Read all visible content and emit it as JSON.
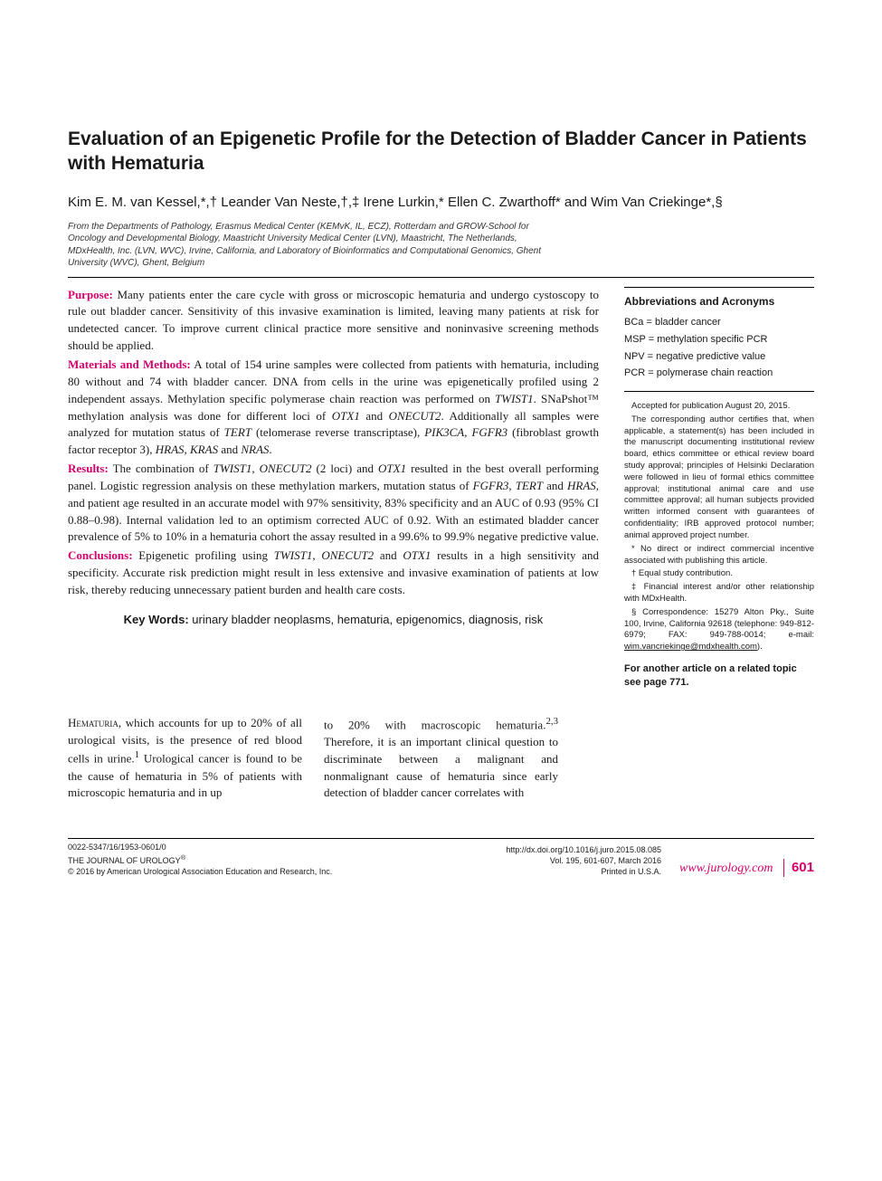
{
  "title": "Evaluation of an Epigenetic Profile for the Detection of Bladder Cancer in Patients with Hematuria",
  "authors": "Kim E. M. van Kessel,*,† Leander Van Neste,†,‡ Irene Lurkin,* Ellen C. Zwarthoff* and Wim Van Criekinge*,§",
  "affiliations": "From the Departments of Pathology, Erasmus Medical Center (KEMvK, IL, ECZ), Rotterdam and GROW-School for Oncology and Developmental Biology, Maastricht University Medical Center (LVN), Maastricht, The Netherlands, MDxHealth, Inc. (LVN, WVC), Irvine, California, and Laboratory of Bioinformatics and Computational Genomics, Ghent University (WVC), Ghent, Belgium",
  "abstract": {
    "purpose_label": "Purpose:",
    "purpose_text": " Many patients enter the care cycle with gross or microscopic hematuria and undergo cystoscopy to rule out bladder cancer. Sensitivity of this invasive examination is limited, leaving many patients at risk for undetected cancer. To improve current clinical practice more sensitive and noninvasive screening methods should be applied.",
    "methods_label": "Materials and Methods:",
    "methods_text_1": " A total of 154 urine samples were collected from patients with hematuria, including 80 without and 74 with bladder cancer. DNA from cells in the urine was epigenetically profiled using 2 independent assays. Methylation specific polymerase chain reaction was performed on ",
    "methods_gene_1": "TWIST1",
    "methods_text_2": ". SNaPshot™ methylation analysis was done for different loci of ",
    "methods_gene_2": "OTX1",
    "methods_text_3": " and ",
    "methods_gene_3": "ONECUT2",
    "methods_text_4": ". Additionally all samples were analyzed for mutation status of ",
    "methods_gene_4": "TERT",
    "methods_text_5": " (telomerase reverse transcriptase), ",
    "methods_gene_5": "PIK3CA",
    "methods_text_6": ", ",
    "methods_gene_6": "FGFR3",
    "methods_text_7": " (fibroblast growth factor receptor 3), ",
    "methods_gene_7": "HRAS",
    "methods_text_8": ", ",
    "methods_gene_8": "KRAS",
    "methods_text_9": " and ",
    "methods_gene_9": "NRAS",
    "methods_text_10": ".",
    "results_label": "Results:",
    "results_text_1": " The combination of ",
    "results_gene_1": "TWIST1",
    "results_text_2": ", ",
    "results_gene_2": "ONECUT2",
    "results_text_3": " (2 loci) and ",
    "results_gene_3": "OTX1",
    "results_text_4": " resulted in the best overall performing panel. Logistic regression analysis on these methylation markers, mutation status of ",
    "results_gene_4": "FGFR3",
    "results_text_5": ", ",
    "results_gene_5": "TERT",
    "results_text_6": " and ",
    "results_gene_6": "HRAS",
    "results_text_7": ", and patient age resulted in an accurate model with 97% sensitivity, 83% specificity and an AUC of 0.93 (95% CI 0.88–0.98). Internal validation led to an optimism corrected AUC of 0.92. With an estimated bladder cancer prevalence of 5% to 10% in a hematuria cohort the assay resulted in a 99.6% to 99.9% negative predictive value.",
    "conclusions_label": "Conclusions:",
    "conclusions_text_1": " Epigenetic profiling using ",
    "conclusions_gene_1": "TWIST1",
    "conclusions_text_2": ", ",
    "conclusions_gene_2": "ONECUT2",
    "conclusions_text_3": " and ",
    "conclusions_gene_3": "OTX1",
    "conclusions_text_4": " results in a high sensitivity and specificity. Accurate risk prediction might result in less extensive and invasive examination of patients at low risk, thereby reducing unnecessary patient burden and health care costs."
  },
  "keywords_label": "Key Words:",
  "keywords_text": " urinary bladder neoplasms, hematuria, epigenomics, diagnosis, risk",
  "abbr": {
    "title": "Abbreviations and Acronyms",
    "items": [
      {
        "k": "BCa",
        "v": "bladder cancer"
      },
      {
        "k": "MSP",
        "v": "methylation specific PCR"
      },
      {
        "k": "NPV",
        "v": "negative predictive value"
      },
      {
        "k": "PCR",
        "v": "polymerase chain reaction"
      }
    ]
  },
  "notes": {
    "accepted": "Accepted for publication August 20, 2015.",
    "corresponding": "The corresponding author certifies that, when applicable, a statement(s) has been included in the manuscript documenting institutional review board, ethics committee or ethical review board study approval; principles of Helsinki Declaration were followed in lieu of formal ethics committee approval; institutional animal care and use committee approval; all human subjects provided written informed consent with guarantees of confidentiality; IRB approved protocol number; animal approved project number.",
    "star": "* No direct or indirect commercial incentive associated with publishing this article.",
    "dagger": "† Equal study contribution.",
    "ddagger": "‡ Financial interest and/or other relationship with MDxHealth.",
    "section_1": "§ Correspondence: 15279 Alton Pky., Suite 100, Irvine, California 92618 (telephone: 949-812-6979; FAX: 949-788-0014; e-mail: ",
    "section_email": "wim.vancriekinge@mdxhealth.com",
    "section_2": ")."
  },
  "related": "For another article on a related topic see page 771.",
  "body": {
    "col1_1": "Hematuria",
    "col1_2": ", which accounts for up to 20% of all urological visits, is the presence of red blood cells in urine.",
    "col1_sup1": "1",
    "col1_3": " Urological cancer is found to be the cause of hematuria in 5% of patients with microscopic hematuria and in up",
    "col2_1": "to 20% with macroscopic hematuria.",
    "col2_sup1": "2,3",
    "col2_2": " Therefore, it is an important clinical question to discriminate between a malignant and nonmalignant cause of hematuria since early detection of bladder cancer correlates with"
  },
  "footer": {
    "issn": "0022-5347/16/1953-0601/0",
    "journal": "THE JOURNAL OF UROLOGY",
    "reg": "®",
    "copyright": "© 2016 by American Urological Association Education and Research, Inc.",
    "doi": "http://dx.doi.org/10.1016/j.juro.2015.08.085",
    "vol": "Vol. 195, 601-607, March 2016",
    "printed": "Printed in U.S.A.",
    "site": "www.jurology.com",
    "page": "601"
  },
  "colors": {
    "accent": "#d6006c",
    "text": "#1a1a1a",
    "bg": "#ffffff"
  }
}
